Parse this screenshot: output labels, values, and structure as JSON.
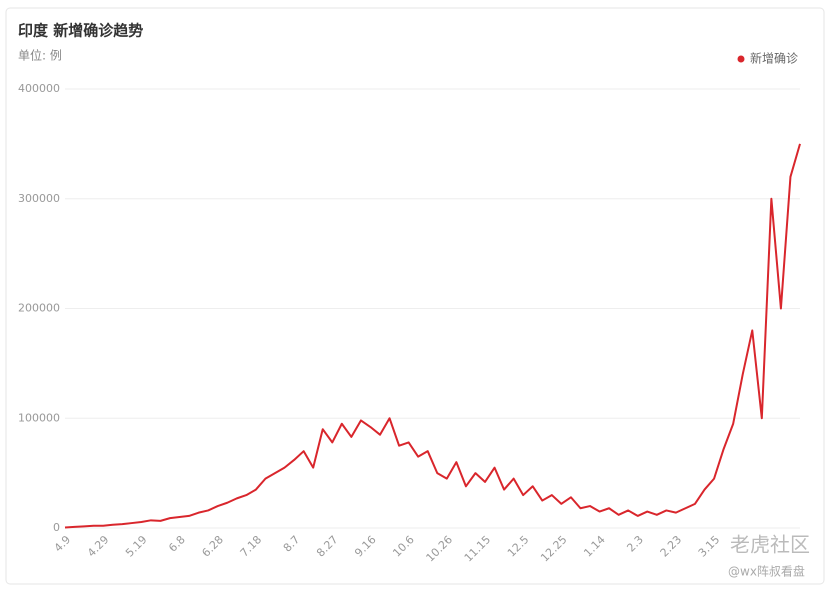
{
  "chart_data": {
    "type": "line",
    "title": "印度 新增确诊趋势",
    "subtitle": "单位: 例",
    "watermarks": [
      "老虎社区",
      "@wx阵叔看盘"
    ],
    "categories": [
      "4.9",
      null,
      null,
      null,
      "4.29",
      null,
      null,
      null,
      "5.19",
      null,
      null,
      null,
      "6.8",
      null,
      null,
      null,
      "6.28",
      null,
      null,
      null,
      "7.18",
      null,
      null,
      null,
      "8.7",
      null,
      null,
      null,
      "8.27",
      null,
      null,
      null,
      "9.16",
      null,
      null,
      null,
      "10.6",
      null,
      null,
      null,
      "10.26",
      null,
      null,
      null,
      "11.15",
      null,
      null,
      null,
      "12.5",
      null,
      null,
      null,
      "12.25",
      null,
      null,
      null,
      "1.14",
      null,
      null,
      null,
      "2.3",
      null,
      null,
      null,
      "2.23",
      null,
      null,
      null,
      "3.15",
      null,
      null,
      null,
      null,
      null,
      null,
      null,
      null,
      null
    ],
    "series": [
      {
        "name": "新增确诊",
        "color": "#d9262c",
        "values": [
          500,
          1000,
          1500,
          2000,
          2000,
          3000,
          3500,
          4500,
          5500,
          7000,
          6500,
          9000,
          10000,
          11000,
          14000,
          16000,
          20000,
          23000,
          27000,
          30000,
          35000,
          45000,
          50000,
          55000,
          62000,
          70000,
          55000,
          90000,
          78000,
          95000,
          83000,
          98000,
          92000,
          85000,
          100000,
          75000,
          78000,
          65000,
          70000,
          50000,
          45000,
          60000,
          38000,
          50000,
          42000,
          55000,
          35000,
          45000,
          30000,
          38000,
          25000,
          30000,
          22000,
          28000,
          18000,
          20000,
          15000,
          18000,
          12000,
          16000,
          11000,
          15000,
          12000,
          16000,
          14000,
          18000,
          22000,
          35000,
          45000,
          72000,
          95000,
          140000,
          180000,
          100000,
          300000,
          200000,
          320000,
          350000
        ]
      }
    ],
    "ylim": [
      0,
      400000
    ],
    "yticks": [
      0,
      100000,
      200000,
      300000,
      400000
    ],
    "grid": true,
    "legend": "top-right"
  }
}
